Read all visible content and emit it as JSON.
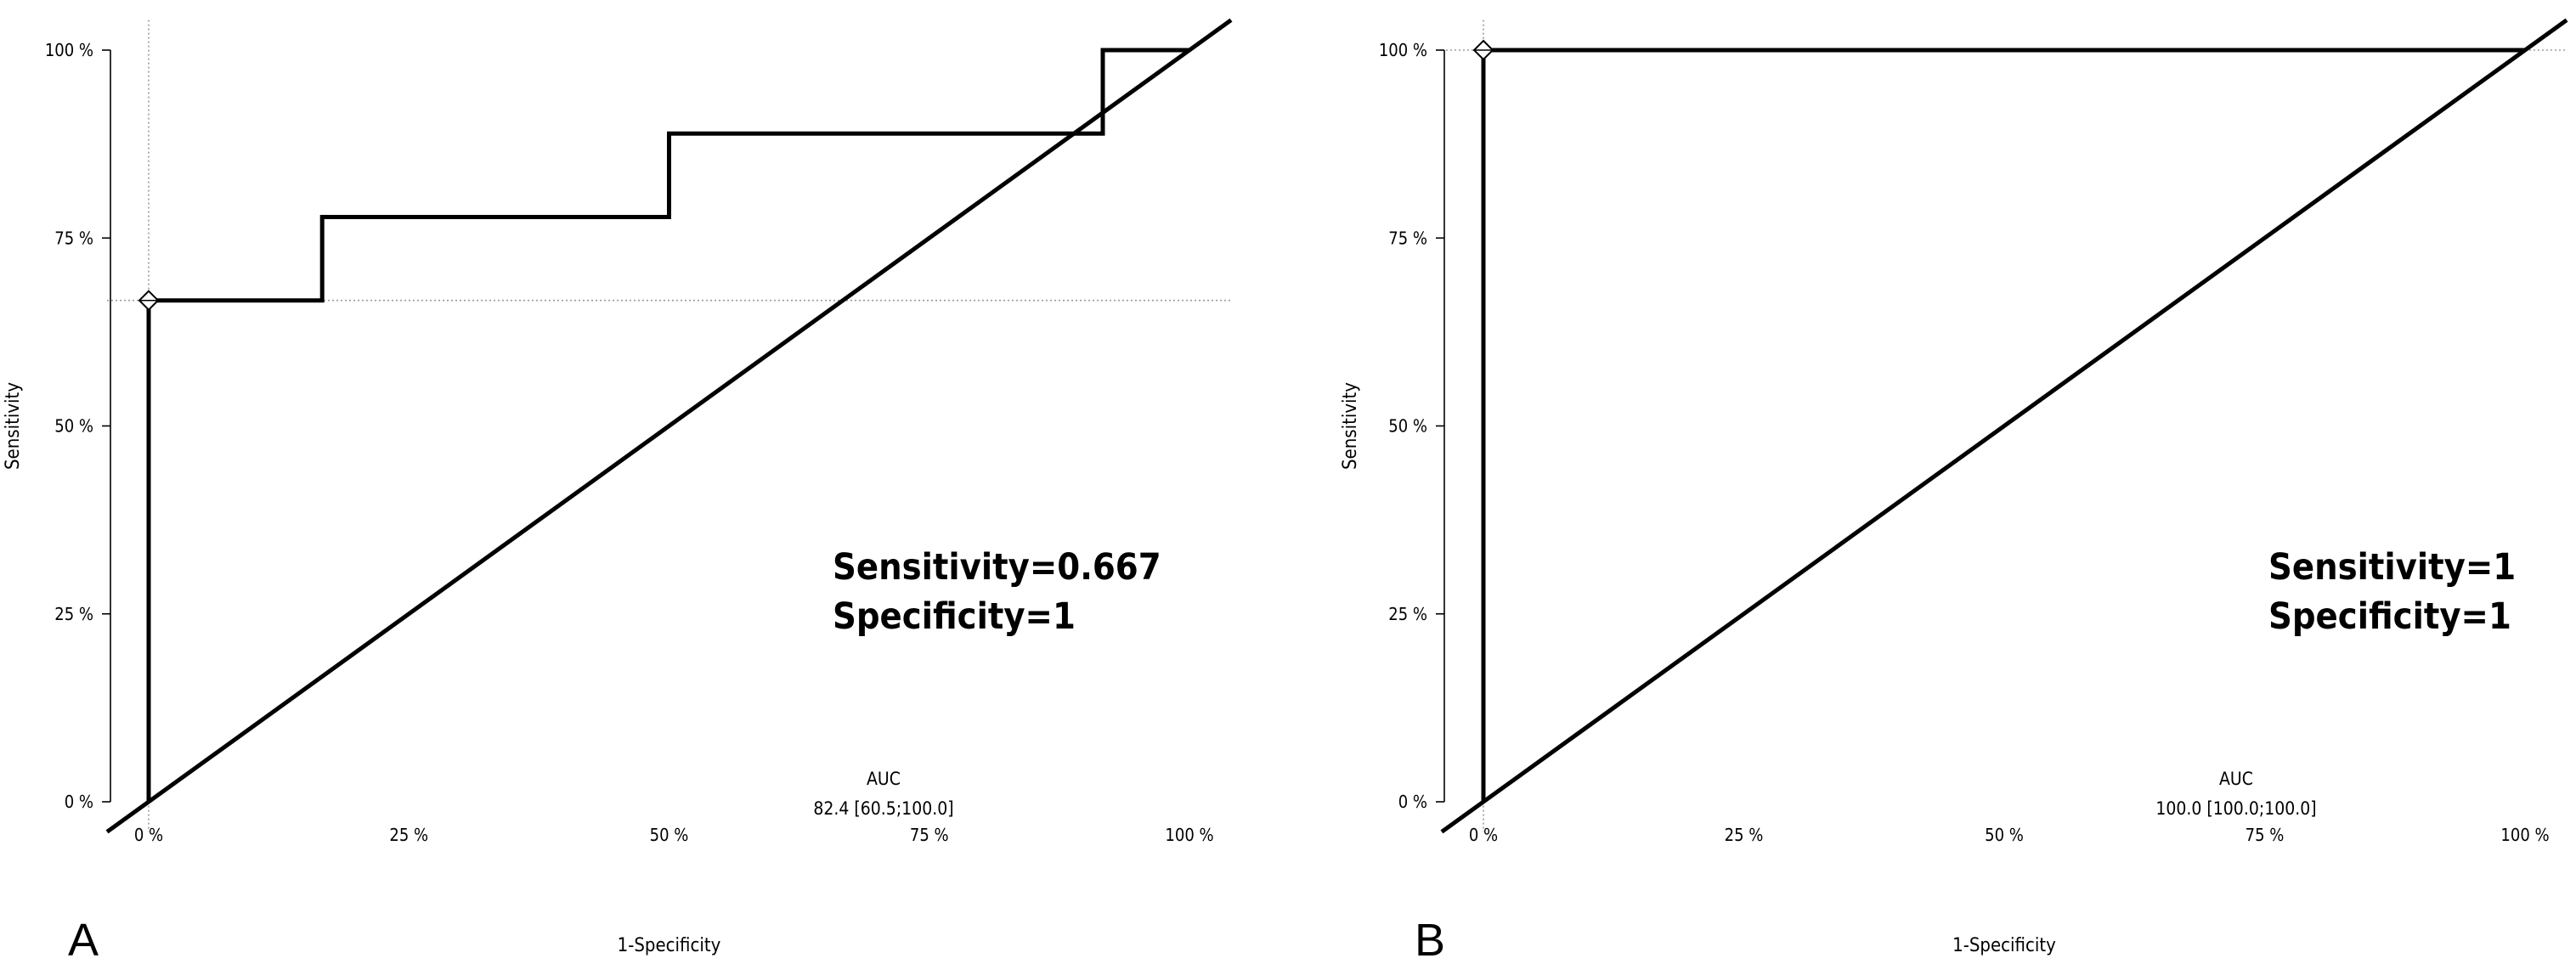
{
  "chart_data": [
    {
      "type": "line",
      "panel_label": "A",
      "xlabel": "1-Specificity",
      "ylabel": "Sensitivity",
      "xlim": [
        0,
        1
      ],
      "ylim": [
        0,
        1
      ],
      "x_ticks": [
        0,
        0.25,
        0.5,
        0.75,
        1
      ],
      "x_tick_labels": [
        "0 %",
        "25 %",
        "50 %",
        "75 %",
        "100 %"
      ],
      "y_ticks": [
        0,
        0.25,
        0.5,
        0.75,
        1
      ],
      "y_tick_labels": [
        "0 %",
        "25 %",
        "50 %",
        "75 %",
        "100 %"
      ],
      "series": [
        {
          "name": "ROC curve",
          "x": [
            0,
            0,
            0.1667,
            0.1667,
            0.5,
            0.5,
            0.9167,
            0.9167,
            1
          ],
          "y": [
            0,
            0.667,
            0.667,
            0.778,
            0.778,
            0.889,
            0.889,
            1,
            1
          ]
        },
        {
          "name": "reference diagonal",
          "x": [
            -0.04,
            1.04
          ],
          "y": [
            -0.04,
            1.04
          ]
        }
      ],
      "cutoff_point": {
        "x": 0,
        "y": 0.667
      },
      "stats_lines": [
        "Sensitivity=0.667",
        "Specificity=1"
      ],
      "auc_title": "AUC",
      "auc_value": "82.4 [60.5;100.0]"
    },
    {
      "type": "line",
      "panel_label": "B",
      "xlabel": "1-Specificity",
      "ylabel": "Sensitivity",
      "xlim": [
        0,
        1
      ],
      "ylim": [
        0,
        1
      ],
      "x_ticks": [
        0,
        0.25,
        0.5,
        0.75,
        1
      ],
      "x_tick_labels": [
        "0 %",
        "25 %",
        "50 %",
        "75 %",
        "100 %"
      ],
      "y_ticks": [
        0,
        0.25,
        0.5,
        0.75,
        1
      ],
      "y_tick_labels": [
        "0 %",
        "25 %",
        "50 %",
        "75 %",
        "100 %"
      ],
      "series": [
        {
          "name": "ROC curve",
          "x": [
            0,
            0,
            1
          ],
          "y": [
            0,
            1,
            1
          ]
        },
        {
          "name": "reference diagonal",
          "x": [
            -0.04,
            1.04
          ],
          "y": [
            -0.04,
            1.04
          ]
        }
      ],
      "cutoff_point": {
        "x": 0,
        "y": 1
      },
      "stats_lines": [
        "Sensitivity=1",
        "Specificity=1"
      ],
      "auc_title": "AUC",
      "auc_value": "100.0 [100.0;100.0]"
    }
  ]
}
